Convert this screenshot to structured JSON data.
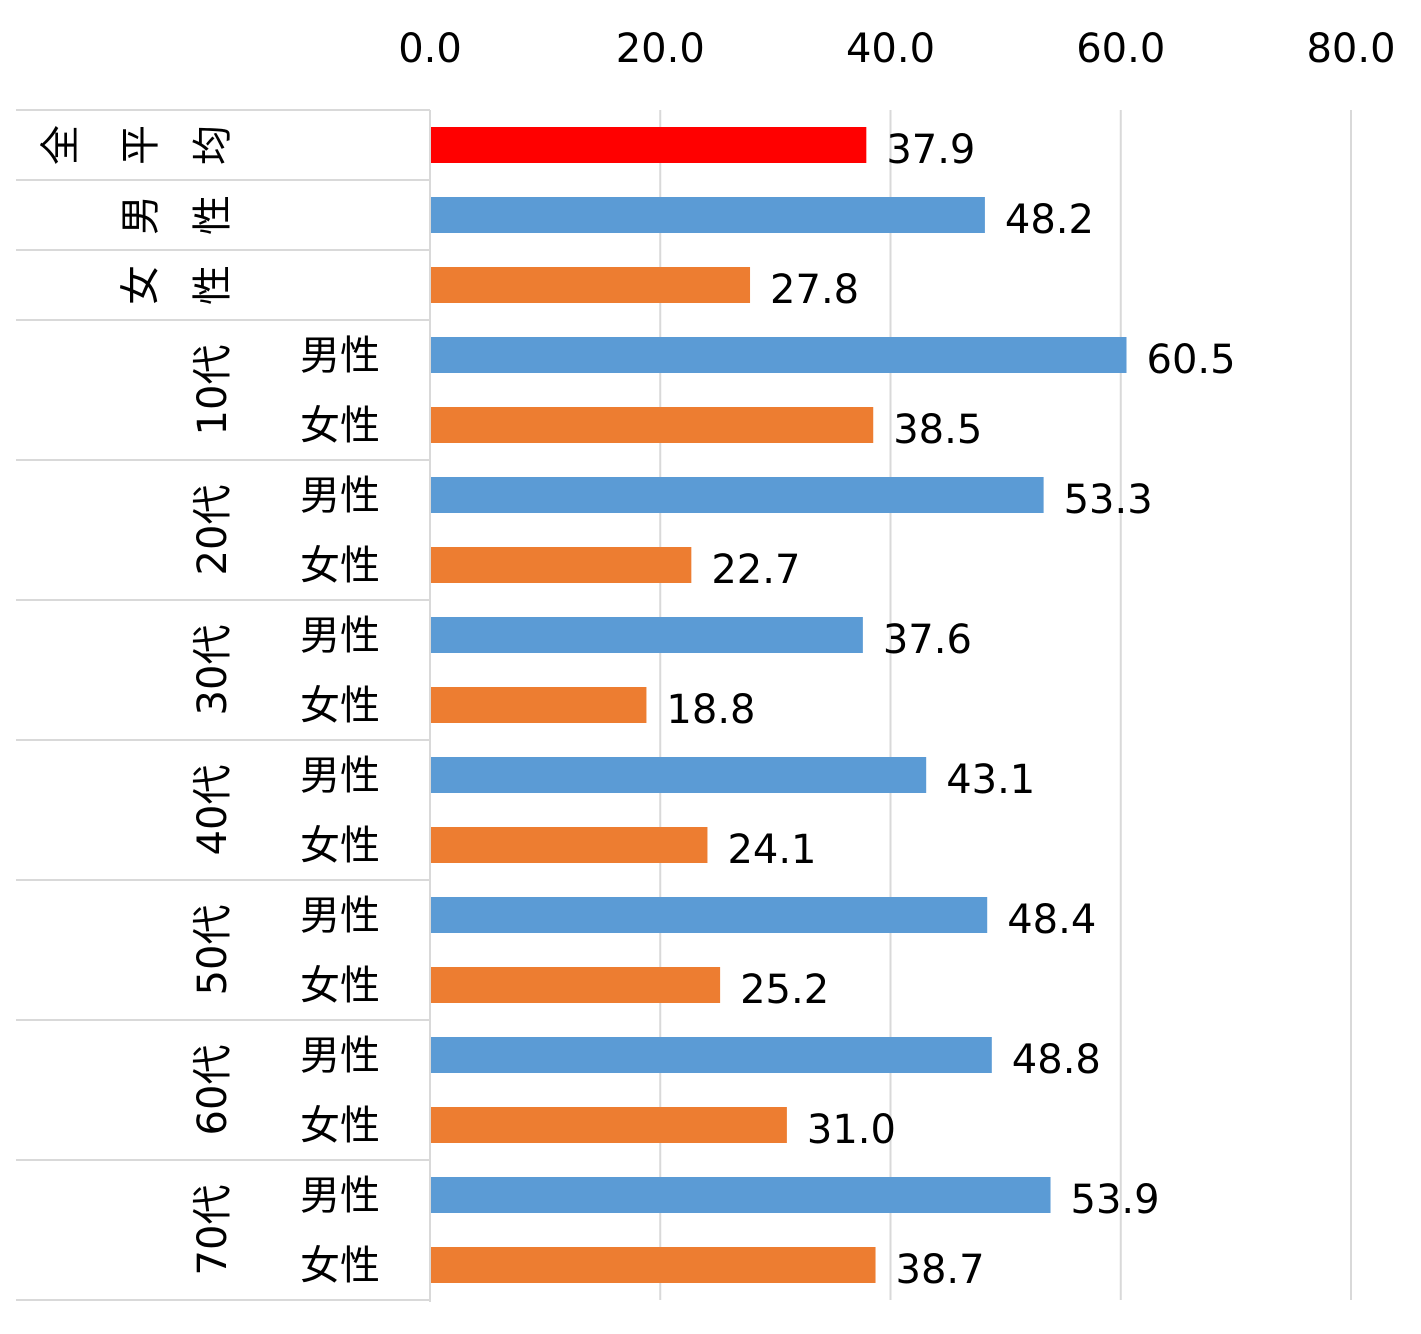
{
  "chart_data": {
    "type": "bar",
    "orientation": "horizontal",
    "xlim": [
      0,
      80
    ],
    "x_ticks": [
      "0.0",
      "20.0",
      "40.0",
      "60.0",
      "80.0"
    ],
    "grid": true,
    "groups": [
      {
        "label": "全平均",
        "rows": [
          {
            "label": "",
            "value": 37.9,
            "value_label": "37.9",
            "series": "overall"
          }
        ]
      },
      {
        "label": "男性",
        "rows": [
          {
            "label": "",
            "value": 48.2,
            "value_label": "48.2",
            "series": "male"
          }
        ]
      },
      {
        "label": "女性",
        "rows": [
          {
            "label": "",
            "value": 27.8,
            "value_label": "27.8",
            "series": "female"
          }
        ]
      },
      {
        "label": "10代",
        "rows": [
          {
            "label": "男性",
            "value": 60.5,
            "value_label": "60.5",
            "series": "male"
          },
          {
            "label": "女性",
            "value": 38.5,
            "value_label": "38.5",
            "series": "female"
          }
        ]
      },
      {
        "label": "20代",
        "rows": [
          {
            "label": "男性",
            "value": 53.3,
            "value_label": "53.3",
            "series": "male"
          },
          {
            "label": "女性",
            "value": 22.7,
            "value_label": "22.7",
            "series": "female"
          }
        ]
      },
      {
        "label": "30代",
        "rows": [
          {
            "label": "男性",
            "value": 37.6,
            "value_label": "37.6",
            "series": "male"
          },
          {
            "label": "女性",
            "value": 18.8,
            "value_label": "18.8",
            "series": "female"
          }
        ]
      },
      {
        "label": "40代",
        "rows": [
          {
            "label": "男性",
            "value": 43.1,
            "value_label": "43.1",
            "series": "male"
          },
          {
            "label": "女性",
            "value": 24.1,
            "value_label": "24.1",
            "series": "female"
          }
        ]
      },
      {
        "label": "50代",
        "rows": [
          {
            "label": "男性",
            "value": 48.4,
            "value_label": "48.4",
            "series": "male"
          },
          {
            "label": "女性",
            "value": 25.2,
            "value_label": "25.2",
            "series": "female"
          }
        ]
      },
      {
        "label": "60代",
        "rows": [
          {
            "label": "男性",
            "value": 48.8,
            "value_label": "48.8",
            "series": "male"
          },
          {
            "label": "女性",
            "value": 31.0,
            "value_label": "31.0",
            "series": "female"
          }
        ]
      },
      {
        "label": "70代",
        "rows": [
          {
            "label": "男性",
            "value": 53.9,
            "value_label": "53.9",
            "series": "male"
          },
          {
            "label": "女性",
            "value": 38.7,
            "value_label": "38.7",
            "series": "female"
          }
        ]
      }
    ],
    "colors": {
      "overall": "#ff0000",
      "male": "#5b9bd5",
      "female": "#ed7d31",
      "grid": "#d9d9d9"
    }
  }
}
